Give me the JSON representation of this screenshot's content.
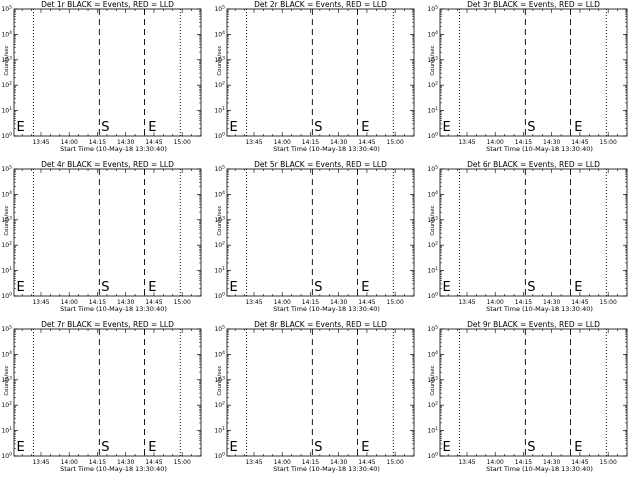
{
  "chart_data": [
    {
      "type": "line",
      "title": "Det 1r BLACK = Events, RED = LLD",
      "xlabel": "Start Time (10-May-18 13:30:40)",
      "ylabel": "Counts/sec",
      "xticks": [
        "13:45",
        "14:00",
        "14:15",
        "14:30",
        "14:45",
        "15:00"
      ],
      "yticks": [
        "10^0",
        "10^1",
        "10^2",
        "10^3",
        "10^4",
        "10^5"
      ],
      "ylog": true,
      "ylim": [
        1,
        100000
      ],
      "xlim": [
        "13:30:40",
        "15:10"
      ],
      "dotted_lines": [
        "13:41",
        "14:59"
      ],
      "dashed_lines": [
        "14:16",
        "14:40"
      ],
      "markers": [
        {
          "text": "E",
          "x": "13:32"
        },
        {
          "text": "S",
          "x": "14:17"
        },
        {
          "text": "E",
          "x": "14:42"
        }
      ],
      "series": []
    },
    {
      "type": "line",
      "title": "Det 2r BLACK = Events, RED = LLD",
      "xlabel": "Start Time (10-May-18 13:30:40)",
      "ylabel": "Counts/sec",
      "xticks": [
        "13:45",
        "14:00",
        "14:15",
        "14:30",
        "14:45",
        "15:00"
      ],
      "yticks": [
        "10^0",
        "10^1",
        "10^2",
        "10^3",
        "10^4",
        "10^5"
      ],
      "ylog": true,
      "ylim": [
        1,
        100000
      ],
      "xlim": [
        "13:30:40",
        "15:10"
      ],
      "dotted_lines": [
        "13:41",
        "14:59"
      ],
      "dashed_lines": [
        "14:16",
        "14:40"
      ],
      "markers": [
        {
          "text": "E",
          "x": "13:32"
        },
        {
          "text": "S",
          "x": "14:17"
        },
        {
          "text": "E",
          "x": "14:42"
        }
      ],
      "series": []
    },
    {
      "type": "line",
      "title": "Det 3r BLACK = Events, RED = LLD",
      "xlabel": "Start Time (10-May-18 13:30:40)",
      "ylabel": "Counts/sec",
      "xticks": [
        "13:45",
        "14:00",
        "14:15",
        "14:30",
        "14:45",
        "15:00"
      ],
      "yticks": [
        "10^0",
        "10^1",
        "10^2",
        "10^3",
        "10^4",
        "10^5"
      ],
      "ylog": true,
      "ylim": [
        1,
        100000
      ],
      "xlim": [
        "13:30:40",
        "15:10"
      ],
      "dotted_lines": [
        "13:41",
        "14:59"
      ],
      "dashed_lines": [
        "14:16",
        "14:40"
      ],
      "markers": [
        {
          "text": "E",
          "x": "13:32"
        },
        {
          "text": "S",
          "x": "14:17"
        },
        {
          "text": "E",
          "x": "14:42"
        }
      ],
      "series": []
    },
    {
      "type": "line",
      "title": "Det 4r BLACK = Events, RED = LLD",
      "xlabel": "Start Time (10-May-18 13:30:40)",
      "ylabel": "Counts/sec",
      "xticks": [
        "13:45",
        "14:00",
        "14:15",
        "14:30",
        "14:45",
        "15:00"
      ],
      "yticks": [
        "10^0",
        "10^1",
        "10^2",
        "10^3",
        "10^4",
        "10^5"
      ],
      "ylog": true,
      "ylim": [
        1,
        100000
      ],
      "xlim": [
        "13:30:40",
        "15:10"
      ],
      "dotted_lines": [
        "13:41",
        "14:59"
      ],
      "dashed_lines": [
        "14:16",
        "14:40"
      ],
      "markers": [
        {
          "text": "E",
          "x": "13:32"
        },
        {
          "text": "S",
          "x": "14:17"
        },
        {
          "text": "E",
          "x": "14:42"
        }
      ],
      "series": []
    },
    {
      "type": "line",
      "title": "Det 5r BLACK = Events, RED = LLD",
      "xlabel": "Start Time (10-May-18 13:30:40)",
      "ylabel": "Counts/sec",
      "xticks": [
        "13:45",
        "14:00",
        "14:15",
        "14:30",
        "14:45",
        "15:00"
      ],
      "yticks": [
        "10^0",
        "10^1",
        "10^2",
        "10^3",
        "10^4",
        "10^5"
      ],
      "ylog": true,
      "ylim": [
        1,
        100000
      ],
      "xlim": [
        "13:30:40",
        "15:10"
      ],
      "dotted_lines": [
        "13:41",
        "14:59"
      ],
      "dashed_lines": [
        "14:16",
        "14:40"
      ],
      "markers": [
        {
          "text": "E",
          "x": "13:32"
        },
        {
          "text": "S",
          "x": "14:17"
        },
        {
          "text": "E",
          "x": "14:42"
        }
      ],
      "series": []
    },
    {
      "type": "line",
      "title": "Det 6r BLACK = Events, RED = LLD",
      "xlabel": "Start Time (10-May-18 13:30:40)",
      "ylabel": "Counts/sec",
      "xticks": [
        "13:45",
        "14:00",
        "14:15",
        "14:30",
        "14:45",
        "15:00"
      ],
      "yticks": [
        "10^0",
        "10^1",
        "10^2",
        "10^3",
        "10^4",
        "10^5"
      ],
      "ylog": true,
      "ylim": [
        1,
        100000
      ],
      "xlim": [
        "13:30:40",
        "15:10"
      ],
      "dotted_lines": [
        "13:41",
        "14:59"
      ],
      "dashed_lines": [
        "14:16",
        "14:40"
      ],
      "markers": [
        {
          "text": "E",
          "x": "13:32"
        },
        {
          "text": "S",
          "x": "14:17"
        },
        {
          "text": "E",
          "x": "14:42"
        }
      ],
      "series": []
    },
    {
      "type": "line",
      "title": "Det 7r BLACK = Events, RED = LLD",
      "xlabel": "Start Time (10-May-18 13:30:40)",
      "ylabel": "Counts/sec",
      "xticks": [
        "13:45",
        "14:00",
        "14:15",
        "14:30",
        "14:45",
        "15:00"
      ],
      "yticks": [
        "10^0",
        "10^1",
        "10^2",
        "10^3",
        "10^4",
        "10^5"
      ],
      "ylog": true,
      "ylim": [
        1,
        100000
      ],
      "xlim": [
        "13:30:40",
        "15:10"
      ],
      "dotted_lines": [
        "13:41",
        "14:59"
      ],
      "dashed_lines": [
        "14:16",
        "14:40"
      ],
      "markers": [
        {
          "text": "E",
          "x": "13:32"
        },
        {
          "text": "S",
          "x": "14:17"
        },
        {
          "text": "E",
          "x": "14:42"
        }
      ],
      "series": []
    },
    {
      "type": "line",
      "title": "Det 8r BLACK = Events, RED = LLD",
      "xlabel": "Start Time (10-May-18 13:30:40)",
      "ylabel": "Counts/sec",
      "xticks": [
        "13:45",
        "14:00",
        "14:15",
        "14:30",
        "14:45",
        "15:00"
      ],
      "yticks": [
        "10^0",
        "10^1",
        "10^2",
        "10^3",
        "10^4",
        "10^5"
      ],
      "ylog": true,
      "ylim": [
        1,
        100000
      ],
      "xlim": [
        "13:30:40",
        "15:10"
      ],
      "dotted_lines": [
        "13:41",
        "14:59"
      ],
      "dashed_lines": [
        "14:16",
        "14:40"
      ],
      "markers": [
        {
          "text": "E",
          "x": "13:32"
        },
        {
          "text": "S",
          "x": "14:17"
        },
        {
          "text": "E",
          "x": "14:42"
        }
      ],
      "series": []
    },
    {
      "type": "line",
      "title": "Det 9r BLACK = Events, RED = LLD",
      "xlabel": "Start Time (10-May-18 13:30:40)",
      "ylabel": "Counts/sec",
      "xticks": [
        "13:45",
        "14:00",
        "14:15",
        "14:30",
        "14:45",
        "15:00"
      ],
      "yticks": [
        "10^0",
        "10^1",
        "10^2",
        "10^3",
        "10^4",
        "10^5"
      ],
      "ylog": true,
      "ylim": [
        1,
        100000
      ],
      "xlim": [
        "13:30:40",
        "15:10"
      ],
      "dotted_lines": [
        "13:41",
        "14:59"
      ],
      "dashed_lines": [
        "14:16",
        "14:40"
      ],
      "markers": [
        {
          "text": "E",
          "x": "13:32"
        },
        {
          "text": "S",
          "x": "14:17"
        },
        {
          "text": "E",
          "x": "14:42"
        }
      ],
      "series": []
    }
  ]
}
